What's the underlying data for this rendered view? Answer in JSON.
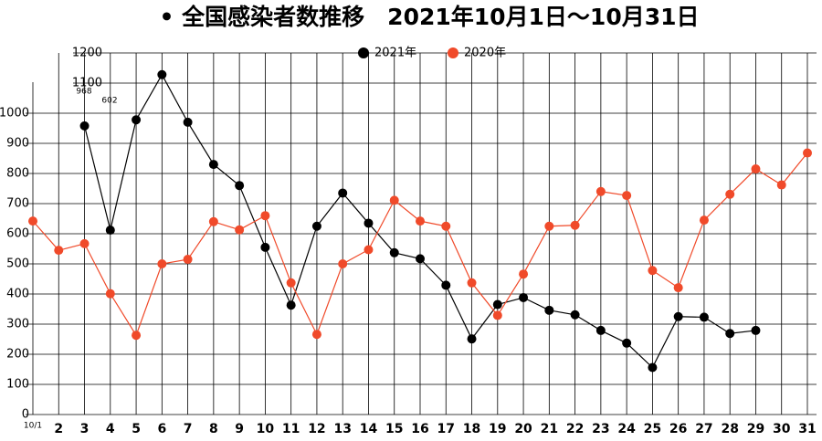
{
  "chart_data": {
    "type": "line",
    "title": "• 全国感染者数推移　2021年10月1日～10月31日",
    "categories": [
      "10/1",
      "2",
      "3",
      "4",
      "5",
      "6",
      "7",
      "8",
      "9",
      "10",
      "11",
      "12",
      "13",
      "14",
      "15",
      "16",
      "17",
      "18",
      "19",
      "20",
      "21",
      "22",
      "23",
      "24",
      "25",
      "26",
      "27",
      "28",
      "29",
      "30",
      "31"
    ],
    "series": [
      {
        "name": "2021年",
        "color": "#000000",
        "values": [
          null,
          null,
          958,
          612,
          978,
          1128,
          970,
          830,
          760,
          555,
          363,
          625,
          735,
          635,
          537,
          517,
          429,
          251,
          365,
          388,
          346,
          331,
          279,
          237,
          156,
          325,
          323,
          269,
          279,
          null,
          null
        ]
      },
      {
        "name": "2020年",
        "color": "#f04a2a",
        "values": [
          642,
          545,
          567,
          401,
          263,
          500,
          515,
          640,
          613,
          660,
          437,
          266,
          500,
          547,
          711,
          642,
          625,
          437,
          329,
          466,
          625,
          628,
          740,
          727,
          478,
          421,
          645,
          731,
          815,
          762,
          868
        ]
      }
    ],
    "annotations": [
      {
        "text": "968"
      },
      {
        "text": "602"
      }
    ],
    "ylim": [
      0,
      1200
    ],
    "yticks": [
      0,
      100,
      200,
      300,
      400,
      500,
      600,
      700,
      800,
      900,
      1000,
      1100,
      1200
    ],
    "grid": true
  }
}
